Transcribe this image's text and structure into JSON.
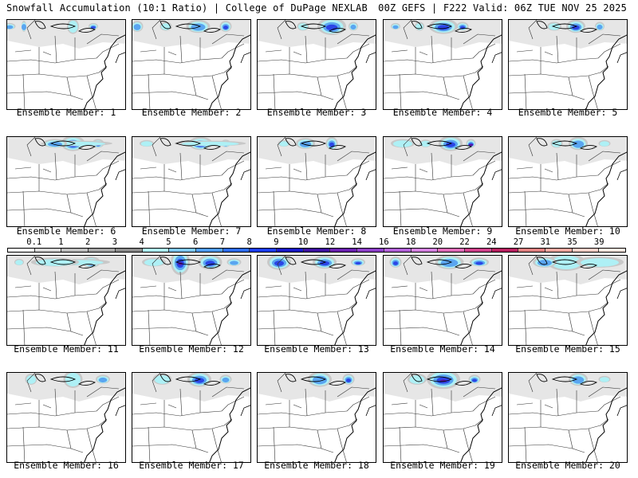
{
  "header": {
    "title_left": "Snowfall Accumulation (10:1 Ratio) | College of DuPage NEXLAB",
    "title_right": "00Z GEFS | F222 Valid: 06Z TUE NOV 25 2025"
  },
  "members": [
    {
      "label": "Ensemble Member: 1",
      "snow": [
        [
          0.55,
          0.05,
          0.14,
          1
        ],
        [
          0.14,
          0.02,
          0.1,
          2
        ],
        [
          0.02,
          0.05,
          0.06,
          2
        ],
        [
          0.72,
          0.04,
          0.06,
          3
        ]
      ]
    },
    {
      "label": "Ensemble Member: 2",
      "snow": [
        [
          0.78,
          0.05,
          0.1,
          3
        ],
        [
          0.55,
          0.1,
          0.12,
          2
        ],
        [
          0.04,
          0.05,
          0.1,
          2
        ],
        [
          0.28,
          0.05,
          0.08,
          1
        ]
      ]
    },
    {
      "label": "Ensemble Member: 3",
      "snow": [
        [
          0.62,
          0.12,
          0.16,
          3
        ],
        [
          0.8,
          0.04,
          0.08,
          2
        ],
        [
          0.38,
          0.05,
          0.08,
          1
        ]
      ]
    },
    {
      "label": "Ensemble Member: 4",
      "snow": [
        [
          0.5,
          0.12,
          0.14,
          3
        ],
        [
          0.66,
          0.05,
          0.08,
          3
        ],
        [
          0.3,
          0.04,
          0.08,
          1
        ],
        [
          0.1,
          0.04,
          0.06,
          2
        ]
      ]
    },
    {
      "label": "Ensemble Member: 5",
      "snow": [
        [
          0.56,
          0.08,
          0.12,
          3
        ],
        [
          0.76,
          0.04,
          0.08,
          2
        ],
        [
          0.38,
          0.06,
          0.08,
          1
        ]
      ]
    },
    {
      "label": "Ensemble Member: 6",
      "snow": [
        [
          0.55,
          0.1,
          0.14,
          4
        ],
        [
          0.76,
          0.05,
          0.08,
          3
        ],
        [
          0.58,
          0.3,
          0.05,
          1
        ],
        [
          0.4,
          0.1,
          0.08,
          2
        ]
      ]
    },
    {
      "label": "Ensemble Member: 7",
      "snow": [
        [
          0.57,
          0.1,
          0.12,
          3
        ],
        [
          0.78,
          0.04,
          0.07,
          3
        ],
        [
          0.12,
          0.06,
          0.06,
          1
        ],
        [
          0.65,
          0.3,
          0.05,
          1
        ]
      ]
    },
    {
      "label": "Ensemble Member: 8",
      "snow": [
        [
          0.62,
          0.05,
          0.12,
          3
        ],
        [
          0.4,
          0.08,
          0.1,
          2
        ],
        [
          0.22,
          0.05,
          0.06,
          1
        ]
      ]
    },
    {
      "label": "Ensemble Member: 9",
      "snow": [
        [
          0.56,
          0.1,
          0.14,
          3
        ],
        [
          0.73,
          0.04,
          0.08,
          4
        ],
        [
          0.16,
          0.1,
          0.08,
          1
        ],
        [
          0.35,
          0.05,
          0.07,
          1
        ]
      ]
    },
    {
      "label": "Ensemble Member: 10",
      "snow": [
        [
          0.58,
          0.08,
          0.12,
          2
        ],
        [
          0.4,
          0.05,
          0.08,
          1
        ],
        [
          0.8,
          0.05,
          0.06,
          1
        ]
      ]
    },
    {
      "label": "Ensemble Member: 11",
      "snow": [
        [
          0.7,
          0.08,
          0.1,
          3
        ],
        [
          0.58,
          0.28,
          0.06,
          1
        ],
        [
          0.4,
          0.2,
          0.08,
          1
        ],
        [
          0.1,
          0.04,
          0.06,
          1
        ]
      ]
    },
    {
      "label": "Ensemble Member: 12",
      "snow": [
        [
          0.4,
          0.08,
          0.24,
          4
        ],
        [
          0.65,
          0.1,
          0.14,
          3
        ],
        [
          0.18,
          0.1,
          0.08,
          1
        ],
        [
          0.85,
          0.06,
          0.07,
          2
        ]
      ]
    },
    {
      "label": "Ensemble Member: 13",
      "snow": [
        [
          0.18,
          0.1,
          0.14,
          3
        ],
        [
          0.56,
          0.1,
          0.12,
          3
        ],
        [
          0.84,
          0.06,
          0.07,
          3
        ]
      ]
    },
    {
      "label": "Ensemble Member: 14",
      "snow": [
        [
          0.1,
          0.05,
          0.1,
          3
        ],
        [
          0.55,
          0.12,
          0.13,
          2
        ],
        [
          0.8,
          0.08,
          0.08,
          3
        ]
      ]
    },
    {
      "label": "Ensemble Member: 15",
      "snow": [
        [
          0.48,
          0.16,
          0.16,
          1
        ],
        [
          0.76,
          0.2,
          0.1,
          1
        ],
        [
          0.3,
          0.1,
          0.1,
          2
        ]
      ]
    },
    {
      "label": "Ensemble Member: 16",
      "snow": [
        [
          0.55,
          0.08,
          0.16,
          1
        ],
        [
          0.8,
          0.06,
          0.08,
          2
        ],
        [
          0.2,
          0.05,
          0.1,
          1
        ]
      ]
    },
    {
      "label": "Ensemble Member: 17",
      "snow": [
        [
          0.56,
          0.1,
          0.14,
          3
        ],
        [
          0.78,
          0.05,
          0.08,
          2
        ],
        [
          0.25,
          0.08,
          0.1,
          1
        ]
      ]
    },
    {
      "label": "Ensemble Member: 18",
      "snow": [
        [
          0.76,
          0.05,
          0.1,
          3
        ],
        [
          0.52,
          0.1,
          0.14,
          2
        ]
      ]
    },
    {
      "label": "Ensemble Member: 19",
      "snow": [
        [
          0.5,
          0.14,
          0.18,
          4
        ],
        [
          0.76,
          0.05,
          0.08,
          3
        ],
        [
          0.28,
          0.08,
          0.1,
          1
        ]
      ]
    },
    {
      "label": "Ensemble Member: 20",
      "snow": [
        [
          0.58,
          0.08,
          0.12,
          2
        ],
        [
          0.8,
          0.05,
          0.06,
          1
        ]
      ]
    }
  ],
  "colorbar": {
    "labels": [
      "0.1",
      "1",
      "2",
      "3",
      "4",
      "5",
      "6",
      "7",
      "8",
      "9",
      "10",
      "12",
      "14",
      "16",
      "18",
      "20",
      "22",
      "24",
      "27",
      "31",
      "35",
      "39"
    ],
    "colors": [
      "#f2f2f2",
      "#d9d9d9",
      "#bfbfbf",
      "#a6a6a6",
      "#8c8c8c",
      "#aef0f5",
      "#7ec8f5",
      "#4f9cf2",
      "#2d6cf0",
      "#1a3cf0",
      "#1717c8",
      "#3d0fa0",
      "#6a1fb0",
      "#8c3ec8",
      "#b260d8",
      "#d480e0",
      "#e06bb8",
      "#d0408a",
      "#b82060",
      "#e08080",
      "#f0a8a0",
      "#f8d0c8",
      "#fde8e0"
    ]
  },
  "snow_colors": [
    "#c8c8c8",
    "#aef0f5",
    "#5aa5f0",
    "#2b45e6",
    "#5a18a8"
  ]
}
